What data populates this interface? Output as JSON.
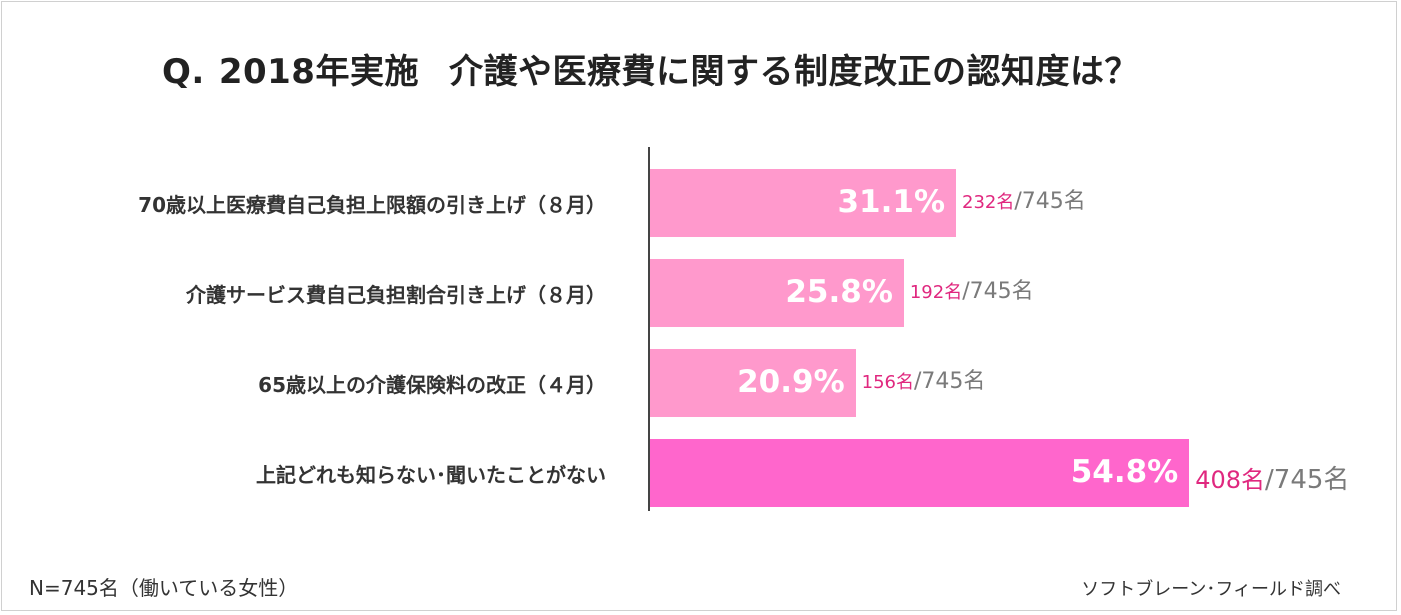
{
  "title": {
    "q": "Q.",
    "year": "2018年実施",
    "text": "介護や医療費に関する制度改正の認知度は？"
  },
  "colors": {
    "bar": "#ff99cc",
    "bar_highlight": "#ff66cc",
    "count": "#e0287f",
    "total": "#7a7a7a"
  },
  "chart_data": {
    "type": "bar",
    "orientation": "horizontal",
    "categories": [
      "70歳以上医療費自己負担上限額の引き上げ（８月）",
      "介護サービス費自己負担割合引き上げ（８月）",
      "65歳以上の介護保険料の改正（４月）",
      "上記どれも知らない･聞いたことがない"
    ],
    "values": [
      31.1,
      25.8,
      20.9,
      54.8
    ],
    "value_labels": [
      "31.1%",
      "25.8%",
      "20.9%",
      "54.8%"
    ],
    "counts": [
      "232名",
      "192名",
      "156名",
      "408名"
    ],
    "totals": [
      "/745名",
      "/745名",
      "/745名",
      "/745名"
    ],
    "highlight_index": 3,
    "xlim": [
      0,
      100
    ],
    "grid": false
  },
  "footer": {
    "sample": "N=745名（働いている女性）",
    "source": "ソフトブレーン･フィールド調べ"
  }
}
